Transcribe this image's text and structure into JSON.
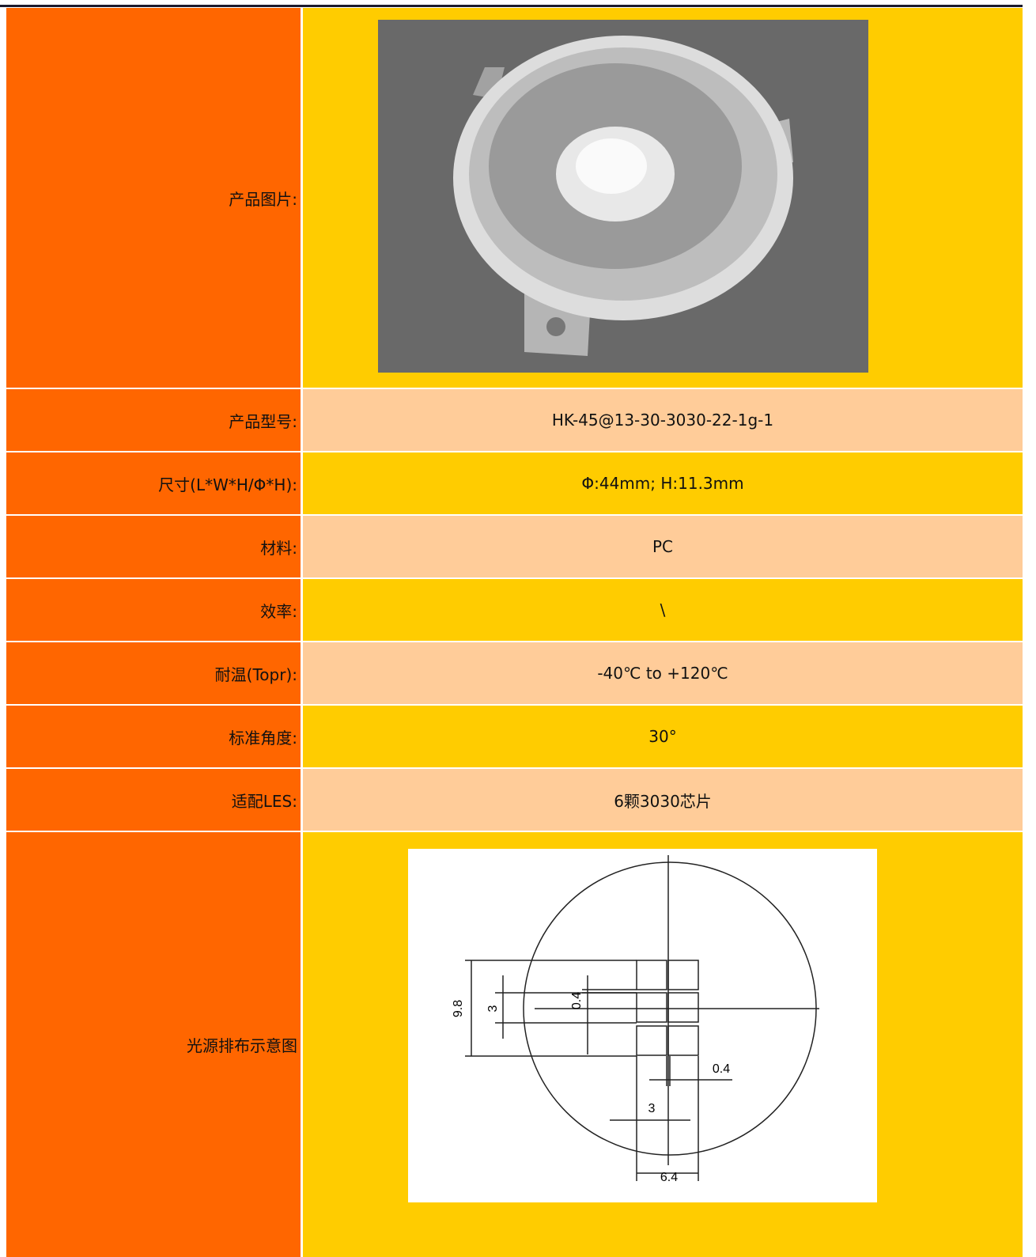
{
  "rows": [
    {
      "label": "产品图片:"
    },
    {
      "label": "产品型号:",
      "value": "HK-45@13-30-3030-22-1g-1"
    },
    {
      "label": "尺寸(L*W*H/Φ*H):",
      "value": "Φ:44mm; H:11.3mm"
    },
    {
      "label": "材料:",
      "value": "PC"
    },
    {
      "label": "效率:",
      "value": "\\"
    },
    {
      "label": "耐温(Topr):",
      "value": "-40℃ to +120℃"
    },
    {
      "label": "标准角度:",
      "value": "30°"
    },
    {
      "label": "适配LES:",
      "value": "6颗3030芯片"
    },
    {
      "label": "光源排布示意图"
    }
  ],
  "diagram": {
    "labels": [
      "9.8",
      "3",
      "0.4",
      "0.4",
      "3",
      "6.4"
    ]
  }
}
